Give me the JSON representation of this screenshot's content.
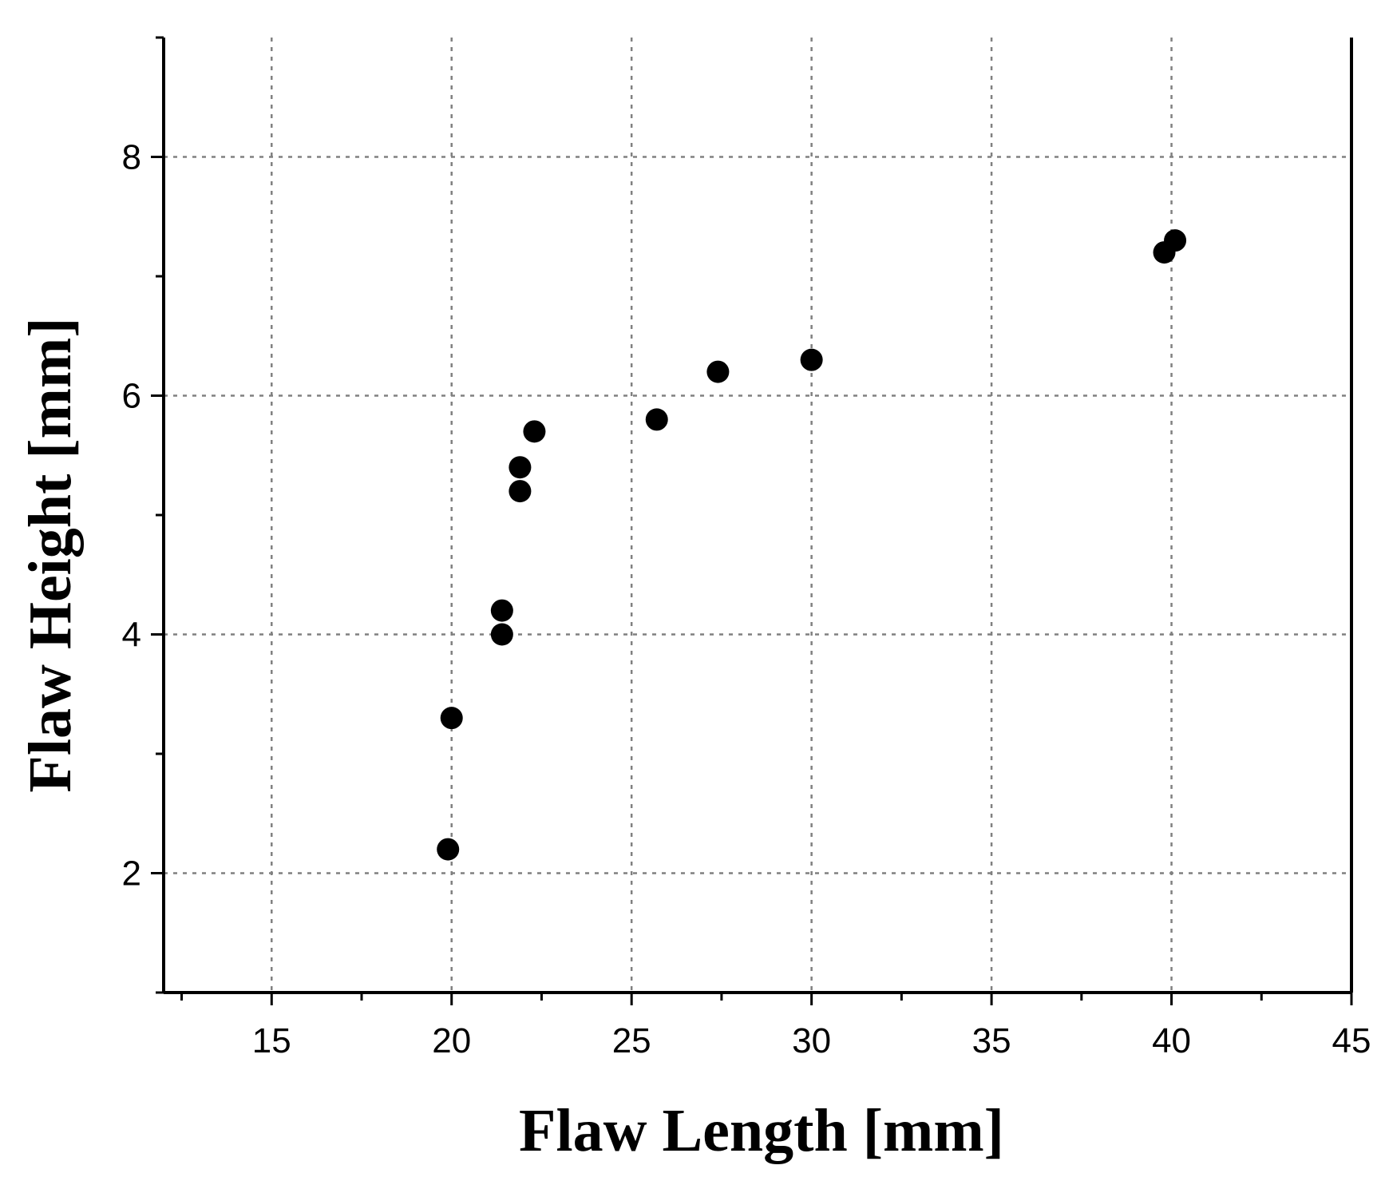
{
  "chart_data": {
    "type": "scatter",
    "title": "",
    "xlabel": "Flaw Length [mm]",
    "ylabel": "Flaw Height [mm]",
    "xlim": [
      12,
      45
    ],
    "ylim": [
      1,
      9
    ],
    "x_major_ticks": [
      15,
      20,
      25,
      30,
      35,
      40,
      45
    ],
    "x_minor_ticks": [
      12.5,
      17.5,
      22.5,
      27.5,
      32.5,
      37.5,
      42.5
    ],
    "y_major_ticks": [
      2,
      4,
      6,
      8
    ],
    "y_minor_ticks": [
      1,
      3,
      5,
      7,
      9
    ],
    "x_tick_labels": [
      "15",
      "20",
      "25",
      "30",
      "35",
      "40",
      "45"
    ],
    "y_tick_labels": [
      "2",
      "4",
      "6",
      "8"
    ],
    "grid": true,
    "legend": "none",
    "marker_color": "#000000",
    "series": [
      {
        "x": [
          19.9,
          20.0,
          21.4,
          21.4,
          21.9,
          21.9,
          22.3,
          25.7,
          27.4,
          30.0,
          39.8,
          40.1
        ],
        "y": [
          2.2,
          3.3,
          4.0,
          4.2,
          5.2,
          5.4,
          5.7,
          5.8,
          6.2,
          6.3,
          7.2,
          7.3
        ]
      }
    ]
  }
}
